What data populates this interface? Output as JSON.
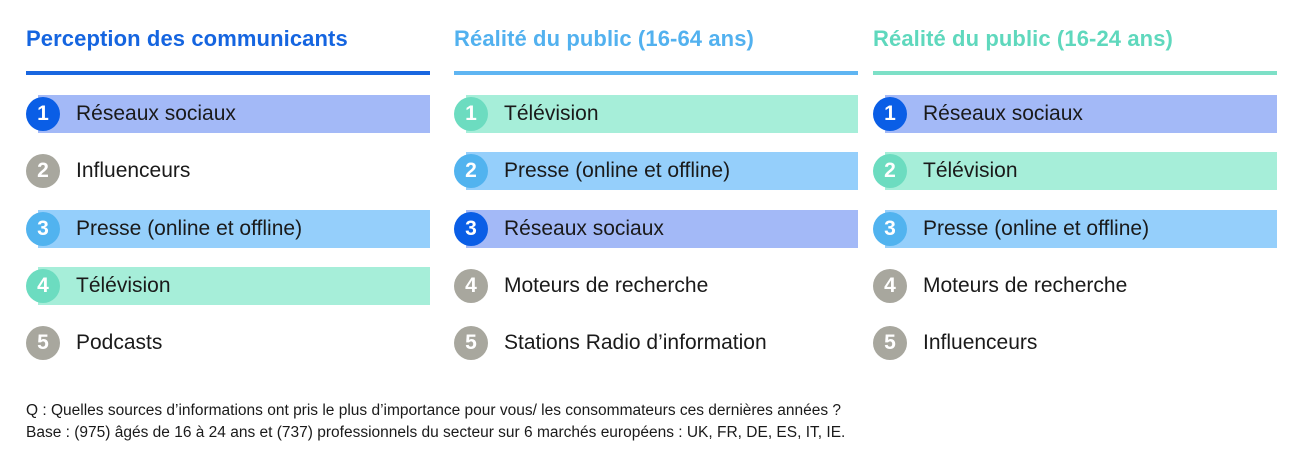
{
  "colors": {
    "dark_blue": "#0a5ee6",
    "sky_blue": "#51b3ef",
    "mint": "#6cdcc0",
    "gray": "#a8a79e",
    "bar_purple": "#a3b9f7",
    "bar_blue": "#95cffb",
    "bar_mint": "#a6eed9",
    "rule_col1": "#1967e0",
    "rule_col2": "#5fb5f2",
    "rule_col3": "#7de0c7"
  },
  "columns": [
    {
      "title": "Perception des communicants",
      "title_color": "#1565e0",
      "items": [
        {
          "rank": "1",
          "label": "Réseaux sociaux"
        },
        {
          "rank": "2",
          "label": "Influenceurs"
        },
        {
          "rank": "3",
          "label": "Presse (online et offline)"
        },
        {
          "rank": "4",
          "label": "Télévision"
        },
        {
          "rank": "5",
          "label": "Podcasts"
        }
      ]
    },
    {
      "title": "Réalité du public (16-64 ans)",
      "title_color": "#52b1ef",
      "items": [
        {
          "rank": "1",
          "label": "Télévision"
        },
        {
          "rank": "2",
          "label": "Presse (online et offline)"
        },
        {
          "rank": "3",
          "label": "Réseaux sociaux"
        },
        {
          "rank": "4",
          "label": "Moteurs de recherche"
        },
        {
          "rank": "5",
          "label": "Stations Radio d’information"
        }
      ]
    },
    {
      "title": "Réalité du public (16-24 ans)",
      "title_color": "#5fd8bd",
      "items": [
        {
          "rank": "1",
          "label": "Réseaux sociaux"
        },
        {
          "rank": "2",
          "label": "Télévision"
        },
        {
          "rank": "3",
          "label": "Presse (online et offline)"
        },
        {
          "rank": "4",
          "label": "Moteurs de recherche"
        },
        {
          "rank": "5",
          "label": "Influenceurs"
        }
      ]
    }
  ],
  "footnote": {
    "question": "Q : Quelles sources d’informations ont pris le plus d’importance pour vous/ les consommateurs ces dernières années ?",
    "base": "Base : (975) âgés de 16 à 24 ans et (737) professionnels du secteur sur 6 marchés européens : UK, FR, DE, ES, IT, IE."
  }
}
